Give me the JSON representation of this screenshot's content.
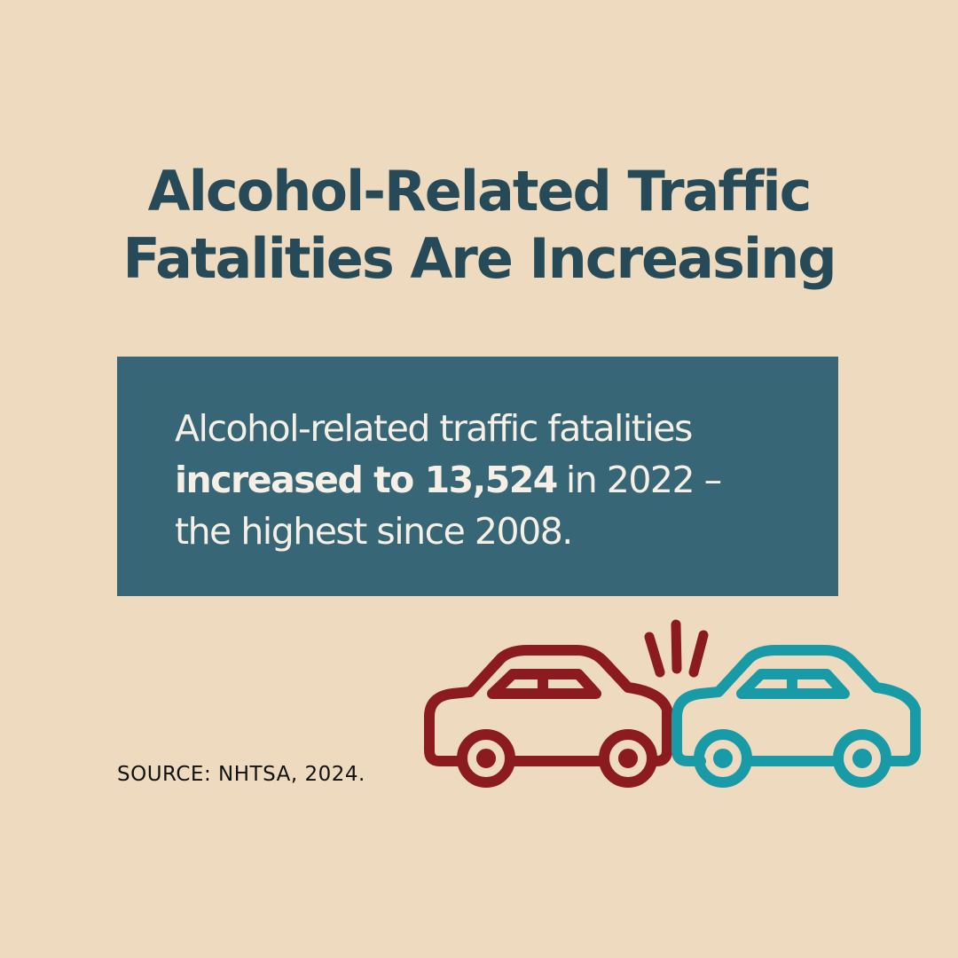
{
  "title": {
    "line1": "Alcohol-Related Traffic",
    "line2": "Fatalities Are Increasing"
  },
  "body": {
    "line1": "Alcohol-related traffic fatalities",
    "highlight": "increased to 13,524",
    "line2_rest": "in 2022 –",
    "line3": "the highest since 2008."
  },
  "source": "SOURCE: NHTSA, 2024."
}
